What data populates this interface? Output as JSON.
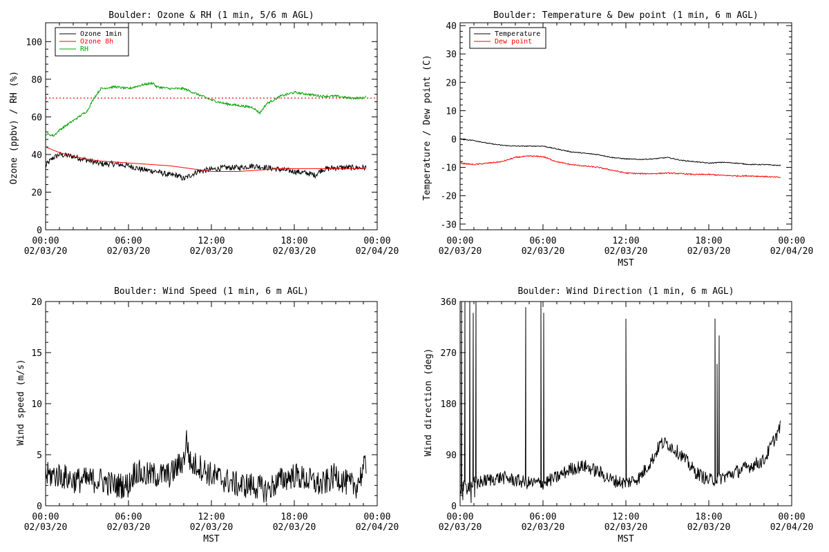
{
  "chart_data": [
    {
      "type": "line",
      "title": "Boulder: Ozone & RH (1 min, 5/6 m AGL)",
      "ylabel": "Ozone (ppbv) / RH (%)",
      "xlabel": "",
      "ylim": [
        0,
        110
      ],
      "yticks": [
        0,
        20,
        40,
        60,
        80,
        100
      ],
      "xticks": [
        {
          "x": 0,
          "time": "00:00",
          "date": "02/03/20"
        },
        {
          "x": 6,
          "time": "06:00",
          "date": "02/03/20"
        },
        {
          "x": 12,
          "time": "12:00",
          "date": "02/03/20"
        },
        {
          "x": 18,
          "time": "18:00",
          "date": "02/03/20"
        },
        {
          "x": 24,
          "time": "00:00",
          "date": "02/04/20"
        }
      ],
      "xlim": [
        0,
        24
      ],
      "legend": {
        "position": "top-left"
      },
      "reference_line": {
        "y": 70,
        "color": "#ff0000",
        "style": "dotted"
      },
      "series": [
        {
          "name": "Ozone 1min",
          "color": "#000000",
          "noise": 1.5,
          "x": [
            0,
            0.5,
            1,
            2,
            3,
            4,
            5,
            6,
            7,
            8,
            9,
            9.5,
            10,
            10.5,
            11,
            12,
            13,
            14,
            15,
            16,
            17,
            18,
            19,
            19.5,
            20,
            21,
            22,
            23,
            23.2
          ],
          "y": [
            34,
            38,
            40,
            39,
            37,
            35,
            35,
            34,
            32,
            31,
            29,
            29,
            27,
            29,
            31,
            32,
            33,
            33,
            34,
            33,
            32,
            31,
            30,
            29,
            32,
            33,
            33,
            33,
            33
          ]
        },
        {
          "name": "Ozone 8h",
          "color": "#ff0000",
          "noise": 0,
          "x": [
            0,
            1,
            2,
            3,
            4,
            5,
            6,
            7,
            8,
            9,
            10,
            11,
            12,
            13,
            14,
            15,
            16,
            17,
            18,
            19,
            20,
            21,
            22,
            23,
            23.2
          ],
          "y": [
            44,
            41,
            39,
            37.5,
            36.5,
            36,
            35.5,
            35,
            34.5,
            34,
            33,
            32,
            31,
            31,
            31,
            31.5,
            32,
            32.5,
            32.5,
            32.5,
            32.5,
            32.5,
            32.5,
            32.5,
            32.5
          ]
        },
        {
          "name": "RH",
          "color": "#00a000",
          "noise": 0.6,
          "x": [
            0,
            0.6,
            1,
            2,
            3,
            3.5,
            4,
            5,
            6,
            7,
            7.8,
            8,
            9,
            10,
            11,
            12,
            13,
            14,
            15,
            15.5,
            16,
            17,
            18,
            19,
            20,
            21,
            22,
            23,
            23.2
          ],
          "y": [
            51,
            50,
            53,
            58,
            63,
            70,
            75,
            76,
            75,
            77,
            78,
            76,
            75,
            75,
            72,
            69,
            67,
            66,
            65,
            62,
            67,
            71,
            73,
            72,
            71,
            71,
            70,
            70,
            71
          ]
        }
      ]
    },
    {
      "type": "line",
      "title": "Boulder: Temperature & Dew point (1 min, 6 m AGL)",
      "ylabel": "Temperature / Dew point (C)",
      "xlabel": "MST",
      "ylim": [
        -32,
        41
      ],
      "yticks": [
        -30,
        -20,
        -10,
        0,
        10,
        20,
        30,
        40
      ],
      "xticks": [
        {
          "x": 0,
          "time": "00:00",
          "date": "02/03/20"
        },
        {
          "x": 6,
          "time": "06:00",
          "date": "02/03/20"
        },
        {
          "x": 12,
          "time": "12:00",
          "date": "02/03/20"
        },
        {
          "x": 18,
          "time": "18:00",
          "date": "02/03/20"
        },
        {
          "x": 24,
          "time": "00:00",
          "date": "02/04/20"
        }
      ],
      "xlim": [
        0,
        24
      ],
      "legend": {
        "position": "top-left"
      },
      "series": [
        {
          "name": "Temperature",
          "color": "#000000",
          "noise": 0.15,
          "x": [
            0,
            1,
            2,
            3,
            4,
            5,
            6,
            7,
            8,
            9,
            10,
            11,
            12,
            13,
            14,
            15,
            16,
            17,
            18,
            19,
            20,
            21,
            22,
            23,
            23.2
          ],
          "y": [
            0,
            -0.5,
            -1.5,
            -2.2,
            -2.5,
            -2.5,
            -2.5,
            -3.5,
            -4.5,
            -5,
            -5.5,
            -6.5,
            -7,
            -7.2,
            -7,
            -6.5,
            -7.5,
            -8,
            -8.5,
            -8.2,
            -8.5,
            -9,
            -9,
            -9.3,
            -9.3
          ]
        },
        {
          "name": "Dew point",
          "color": "#ff0000",
          "noise": 0.2,
          "x": [
            0,
            1,
            2,
            3,
            4,
            5,
            6,
            7,
            8,
            9,
            10,
            11,
            12,
            13,
            14,
            15,
            16,
            17,
            18,
            19,
            20,
            21,
            22,
            23,
            23.2
          ],
          "y": [
            -8.5,
            -9,
            -8.5,
            -8,
            -6.5,
            -6,
            -6.2,
            -8,
            -9,
            -9.5,
            -10,
            -11,
            -12,
            -12.2,
            -12.2,
            -12,
            -12.2,
            -12.5,
            -12.5,
            -12.8,
            -13,
            -13,
            -13.2,
            -13.5,
            -13.5
          ]
        }
      ]
    },
    {
      "type": "line",
      "title": "Boulder: Wind Speed (1 min, 6 m AGL)",
      "ylabel": "Wind speed (m/s)",
      "xlabel": "MST",
      "ylim": [
        0,
        20
      ],
      "yticks": [
        0,
        5,
        10,
        15,
        20
      ],
      "xticks": [
        {
          "x": 0,
          "time": "00:00",
          "date": "02/03/20"
        },
        {
          "x": 6,
          "time": "06:00",
          "date": "02/03/20"
        },
        {
          "x": 12,
          "time": "12:00",
          "date": "02/03/20"
        },
        {
          "x": 18,
          "time": "18:00",
          "date": "02/03/20"
        },
        {
          "x": 24,
          "time": "00:00",
          "date": "02/04/20"
        }
      ],
      "xlim": [
        0,
        24
      ],
      "series": [
        {
          "name": "",
          "color": "#000000",
          "noise": 1.3,
          "floor": 0,
          "x": [
            0,
            1,
            2,
            3,
            4,
            5,
            6,
            6.5,
            7,
            8,
            9,
            10,
            10.2,
            10.5,
            11,
            12,
            13,
            14,
            15,
            16,
            17,
            18,
            19,
            20,
            21,
            22,
            22.5,
            23,
            23.2
          ],
          "y": [
            3,
            3,
            2.5,
            2.5,
            2.5,
            2,
            2,
            3.5,
            3,
            3,
            3,
            4.5,
            6.5,
            4,
            4,
            3,
            2.5,
            2,
            2,
            1.5,
            2.5,
            3,
            2.5,
            2,
            3,
            2,
            2,
            3.5,
            4
          ]
        }
      ]
    },
    {
      "type": "line",
      "title": "Boulder: Wind Direction (1 min, 6 m AGL)",
      "ylabel": "Wind direction (deg)",
      "xlabel": "MST",
      "ylim": [
        0,
        360
      ],
      "yticks": [
        0,
        90,
        180,
        270,
        360
      ],
      "xticks": [
        {
          "x": 0,
          "time": "00:00",
          "date": "02/03/20"
        },
        {
          "x": 6,
          "time": "06:00",
          "date": "02/03/20"
        },
        {
          "x": 12,
          "time": "12:00",
          "date": "02/03/20"
        },
        {
          "x": 18,
          "time": "18:00",
          "date": "02/03/20"
        },
        {
          "x": 24,
          "time": "00:00",
          "date": "02/04/20"
        }
      ],
      "xlim": [
        0,
        24
      ],
      "series": [
        {
          "name": "",
          "color": "#000000",
          "noise": 12,
          "floor": 0,
          "ceil": 360,
          "x": [
            0,
            1,
            2,
            3,
            4,
            5,
            6,
            7,
            8,
            9,
            10,
            11,
            12,
            13,
            14,
            14.5,
            15,
            16,
            17,
            18,
            19,
            20,
            21,
            22,
            23,
            23.2
          ],
          "y": [
            30,
            40,
            45,
            50,
            45,
            40,
            40,
            50,
            65,
            70,
            60,
            45,
            40,
            50,
            85,
            110,
            110,
            90,
            60,
            45,
            50,
            60,
            70,
            80,
            130,
            140
          ],
          "spikes": [
            {
              "x": 0.1,
              "y": 360
            },
            {
              "x": 0.2,
              "y": 10
            },
            {
              "x": 0.35,
              "y": 360
            },
            {
              "x": 0.5,
              "y": 20
            },
            {
              "x": 0.7,
              "y": 360
            },
            {
              "x": 0.8,
              "y": 5
            },
            {
              "x": 0.95,
              "y": 340
            },
            {
              "x": 1.05,
              "y": 15
            },
            {
              "x": 1.15,
              "y": 360
            },
            {
              "x": 1.25,
              "y": 30
            },
            {
              "x": 4.75,
              "y": 350
            },
            {
              "x": 5.85,
              "y": 360
            },
            {
              "x": 5.95,
              "y": 40
            },
            {
              "x": 6.05,
              "y": 340
            },
            {
              "x": 12.0,
              "y": 330
            },
            {
              "x": 18.45,
              "y": 330
            },
            {
              "x": 18.6,
              "y": 250
            },
            {
              "x": 18.75,
              "y": 300
            }
          ]
        }
      ]
    }
  ]
}
